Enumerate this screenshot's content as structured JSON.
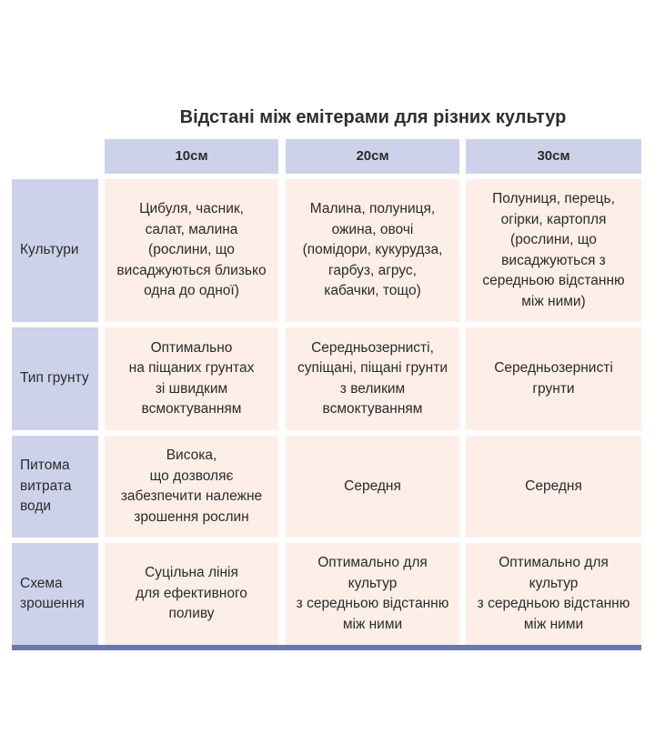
{
  "title": "Відстані між емітерами для різних культур",
  "columns": [
    "10см",
    "20см",
    "30см"
  ],
  "rows": [
    {
      "label": "Культури",
      "cells": [
        "Цибуля, часник,\nсалат, малина\n(рослини, що\nвисаджуються близько\nодна до одної)",
        "Малина, полуниця,\nожина, овочі\n(помідори, кукурудза,\nгарбуз, агрус,\nкабачки, тощо)",
        "Полуниця, перець,\nогірки, картопля\n(рослини, що\nвисаджуються з\nсередньою відстанню\nміж ними)"
      ]
    },
    {
      "label": "Тип грунту",
      "cells": [
        "Оптимально\nна піщаних грунтах\nзі швидким\nвсмоктуванням",
        "Середньозернисті,\nсупіщані, піщані грунти\nз великим\nвсмоктуванням",
        "Середньозернисті\nгрунти"
      ]
    },
    {
      "label": "Питома\nвитрата\nводи",
      "cells": [
        "Висока,\nщо дозволяє\nзабезпечити належне\nзрошення рослин",
        "Середня",
        "Середня"
      ]
    },
    {
      "label": "Схема\nзрошення",
      "cells": [
        "Суцільна лінія\nдля ефективного\nполиву",
        "Оптимально для\nкультур\nз середньою відстанню\nміж ними",
        "Оптимально для\nкультур\nз середньою відстанню\nміж ними"
      ]
    }
  ],
  "colors": {
    "header_bg": "#cdd2ea",
    "cell_bg": "#fdeee8",
    "bottom_bar": "#6a77a9"
  }
}
